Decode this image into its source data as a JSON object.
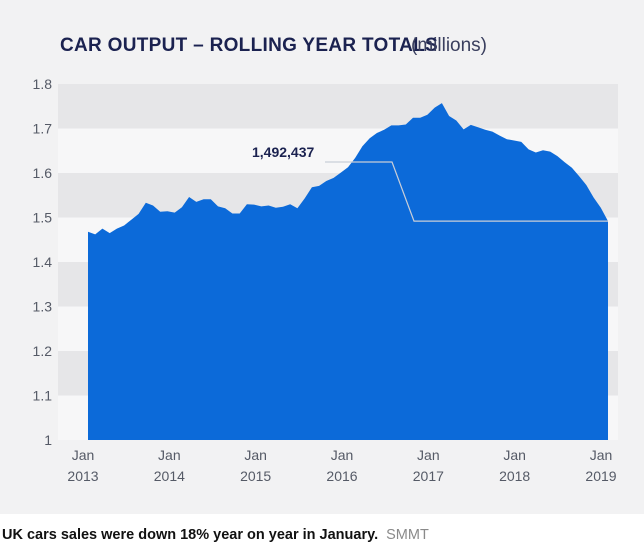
{
  "caption": {
    "text": "UK cars sales were down 18% year on year in January.",
    "source": "SMMT"
  },
  "chart_data": {
    "type": "area",
    "title": "CAR OUTPUT – ROLLING YEAR TOTALS",
    "subtitle": "(millions)",
    "ylim": [
      1.0,
      1.8
    ],
    "yticks": [
      "1.8",
      "1.7",
      "1.6",
      "1.5",
      "1.4",
      "1.3",
      "1.2",
      "1.1",
      "1"
    ],
    "ytick_values": [
      1.8,
      1.7,
      1.6,
      1.5,
      1.4,
      1.3,
      1.2,
      1.1,
      1.0
    ],
    "xticks": [
      {
        "month": "Jan",
        "year": "2013",
        "t": 0
      },
      {
        "month": "Jan",
        "year": "2014",
        "t": 12
      },
      {
        "month": "Jan",
        "year": "2015",
        "t": 24
      },
      {
        "month": "Jan",
        "year": "2016",
        "t": 36
      },
      {
        "month": "Jan",
        "year": "2017",
        "t": 48
      },
      {
        "month": "Jan",
        "year": "2018",
        "t": 60
      },
      {
        "month": "Jan",
        "year": "2019",
        "t": 72
      }
    ],
    "grid": "alternating-bands",
    "fill_color": "#0c6ad9",
    "annotation": {
      "label": "1,492,437",
      "t": 72,
      "value": 1.492
    },
    "series": [
      {
        "name": "Car output, rolling year total",
        "t": [
          0,
          1,
          2,
          3,
          4,
          5,
          6,
          7,
          8,
          9,
          10,
          11,
          12,
          13,
          14,
          15,
          16,
          17,
          18,
          19,
          20,
          21,
          22,
          23,
          24,
          25,
          26,
          27,
          28,
          29,
          30,
          31,
          32,
          33,
          34,
          35,
          36,
          37,
          38,
          39,
          40,
          41,
          42,
          43,
          44,
          45,
          46,
          47,
          48,
          49,
          50,
          51,
          52,
          53,
          54,
          55,
          56,
          57,
          58,
          59,
          60,
          61,
          62,
          63,
          64,
          65,
          66,
          67,
          68,
          69,
          70,
          71,
          72
        ],
        "values": [
          1.468,
          1.462,
          1.475,
          1.465,
          1.475,
          1.482,
          1.495,
          1.508,
          1.533,
          1.527,
          1.513,
          1.514,
          1.511,
          1.523,
          1.546,
          1.535,
          1.541,
          1.541,
          1.525,
          1.521,
          1.509,
          1.509,
          1.53,
          1.529,
          1.525,
          1.527,
          1.522,
          1.524,
          1.53,
          1.521,
          1.543,
          1.568,
          1.571,
          1.582,
          1.589,
          1.601,
          1.613,
          1.634,
          1.66,
          1.678,
          1.69,
          1.697,
          1.707,
          1.707,
          1.709,
          1.724,
          1.724,
          1.731,
          1.747,
          1.757,
          1.728,
          1.718,
          1.698,
          1.708,
          1.703,
          1.697,
          1.693,
          1.684,
          1.676,
          1.673,
          1.67,
          1.653,
          1.646,
          1.651,
          1.648,
          1.638,
          1.624,
          1.612,
          1.593,
          1.573,
          1.545,
          1.522,
          1.492
        ]
      }
    ]
  }
}
